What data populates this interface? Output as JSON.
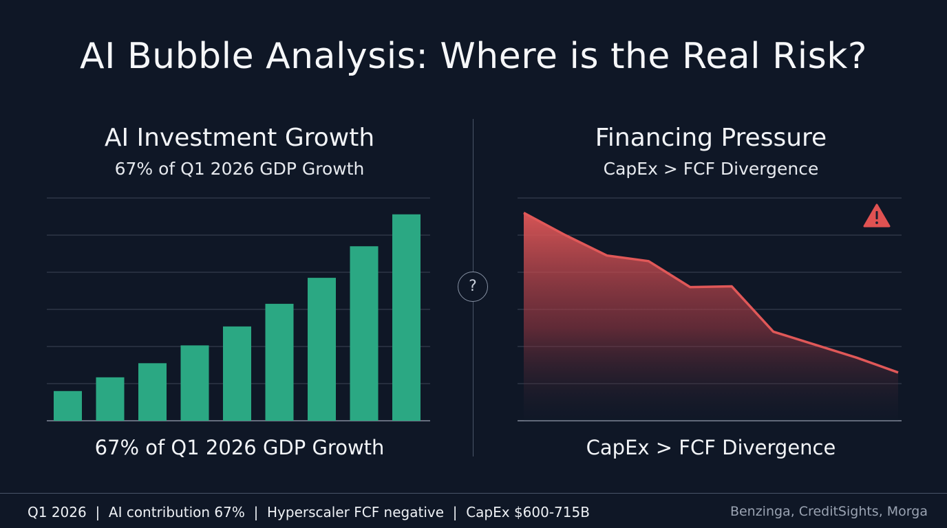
{
  "title": "AI Bubble Analysis: Where is the Real Risk?",
  "colors": {
    "background": "#0f1726",
    "bar": "#2ba883",
    "area": "#e05858",
    "grid": "#3d4656"
  },
  "left_panel": {
    "title": "AI Investment Growth",
    "subtitle": "67% of Q1 2026 GDP Growth",
    "caption": "67% of Q1 2026 GDP Growth"
  },
  "right_panel": {
    "title": "Financing Pressure",
    "subtitle": "CapEx > FCF Divergence",
    "caption": "CapEx > FCF Divergence",
    "icon": "warning-triangle-icon"
  },
  "center_icon": {
    "name": "question-icon",
    "glyph": "?"
  },
  "footer": {
    "left": "Q1 2026  |  AI contribution 67%  |  Hyperscaler FCF negative  |  CapEx $600-715B",
    "right": "Benzinga, CreditSights, Morga"
  },
  "chart_data": [
    {
      "type": "bar",
      "categories": [
        "",
        "",
        "",
        "",
        "",
        "",
        "",
        "",
        ""
      ],
      "values": [
        0.8,
        1.17,
        1.55,
        2.03,
        2.54,
        3.15,
        3.85,
        4.7,
        5.56
      ],
      "ylim": [
        0,
        6
      ],
      "grid": true,
      "title": "AI Investment Growth"
    },
    {
      "type": "area",
      "x": [
        0,
        1,
        2,
        3,
        4,
        5,
        6,
        7,
        8,
        9
      ],
      "values": [
        5.6,
        5.0,
        4.45,
        4.3,
        3.6,
        3.62,
        2.4,
        2.05,
        1.7,
        1.3
      ],
      "ylim": [
        0,
        6
      ],
      "grid": true,
      "title": "Financing Pressure"
    }
  ]
}
